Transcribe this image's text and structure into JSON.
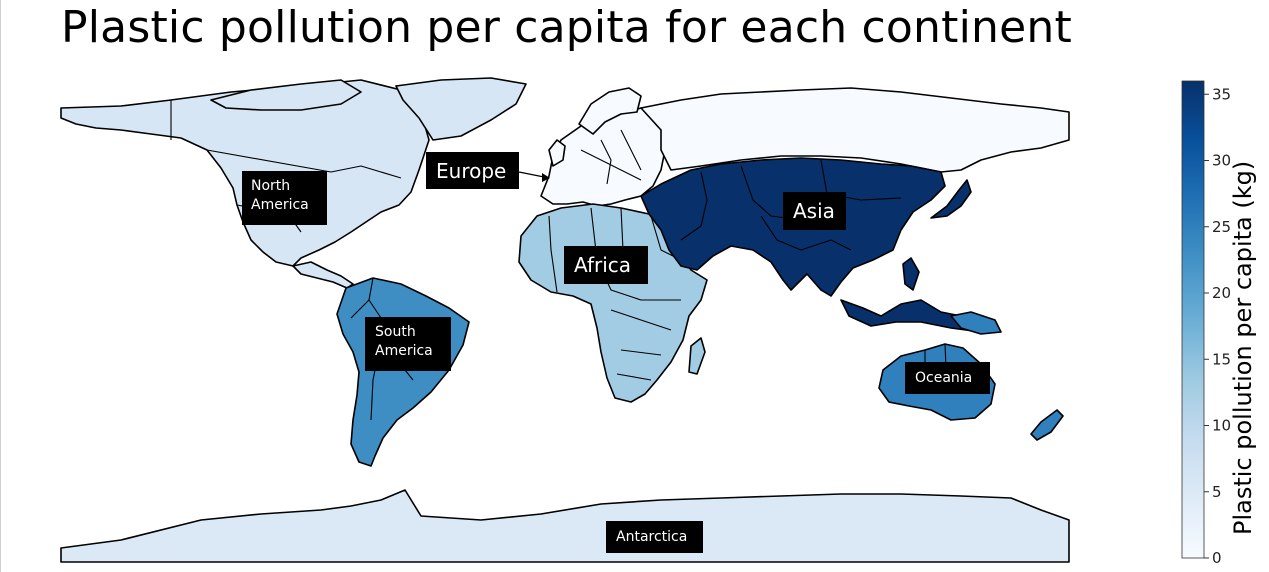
{
  "title": "Plastic pollution per capita for each continent",
  "colorbar": {
    "title": "Plastic pollution per capita (kg)",
    "min": 0,
    "max": 36,
    "ticks": [
      "0",
      "5",
      "10",
      "15",
      "20",
      "25",
      "30",
      "35"
    ],
    "tick_values": [
      0,
      5,
      10,
      15,
      20,
      25,
      30,
      35
    ],
    "color_low": "#f7fbff",
    "color_high": "#08306b",
    "stops": [
      "#f7fbff",
      "#deebf7",
      "#c6dbef",
      "#9ecae1",
      "#6baed6",
      "#4292c6",
      "#2171b5",
      "#08519c",
      "#08306b"
    ]
  },
  "chart_data": {
    "type": "choropleth",
    "title": "Plastic pollution per capita for each continent",
    "colorbar_label": "Plastic pollution per capita (kg)",
    "range": [
      0,
      36
    ],
    "categories": [
      "North America",
      "South America",
      "Europe",
      "Africa",
      "Asia",
      "Oceania",
      "Antarctica"
    ],
    "values": [
      6,
      23,
      0,
      13,
      36,
      25,
      5
    ]
  },
  "labels": {
    "north_america": "North\nAmerica",
    "south_america": "South\nAmerica",
    "europe": "Europe",
    "africa": "Africa",
    "asia": "Asia",
    "oceania": "Oceania",
    "antarctica": "Antarctica"
  }
}
